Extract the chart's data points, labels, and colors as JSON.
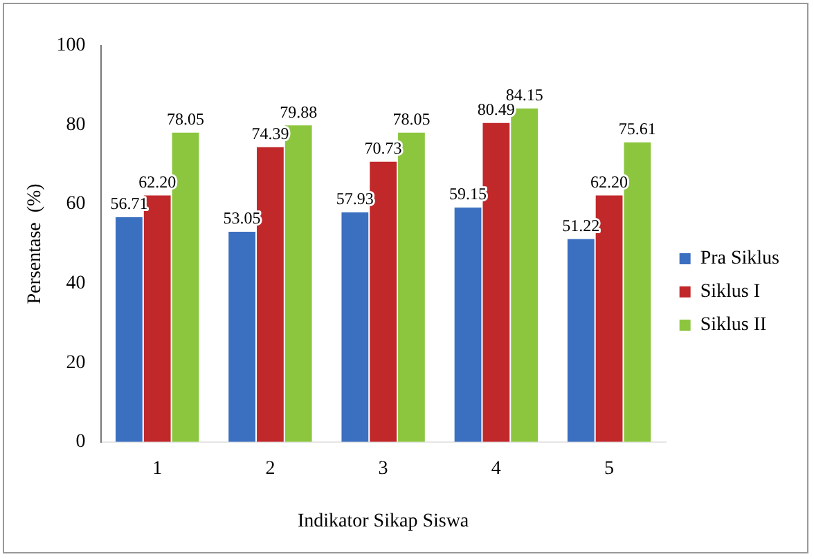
{
  "chart_data": {
    "type": "bar",
    "xlabel": "Indikator Sikap Siswa",
    "ylabel": "Persentase  (%)",
    "categories": [
      "1",
      "2",
      "3",
      "4",
      "5"
    ],
    "series": [
      {
        "name": "Pra Siklus",
        "color": "#3b6fc0",
        "values": [
          56.71,
          53.05,
          57.93,
          59.15,
          51.22
        ],
        "value_labels": [
          "56.71",
          "53.05",
          "57.93",
          "59.15",
          "51.22"
        ]
      },
      {
        "name": "Siklus I",
        "color": "#c0282a",
        "values": [
          62.2,
          74.39,
          70.73,
          80.49,
          62.2
        ],
        "value_labels": [
          "62.20",
          "74.39",
          "70.73",
          "80.49",
          "62.20"
        ]
      },
      {
        "name": "Siklus II",
        "color": "#8cc63f",
        "values": [
          78.05,
          79.88,
          78.05,
          84.15,
          75.61
        ],
        "value_labels": [
          "78.05",
          "79.88",
          "78.05",
          "84.15",
          "75.61"
        ]
      }
    ],
    "ylim": [
      0,
      100
    ],
    "yticks": [
      0,
      20,
      40,
      60,
      80,
      100
    ],
    "grid": false,
    "legend": "right"
  }
}
